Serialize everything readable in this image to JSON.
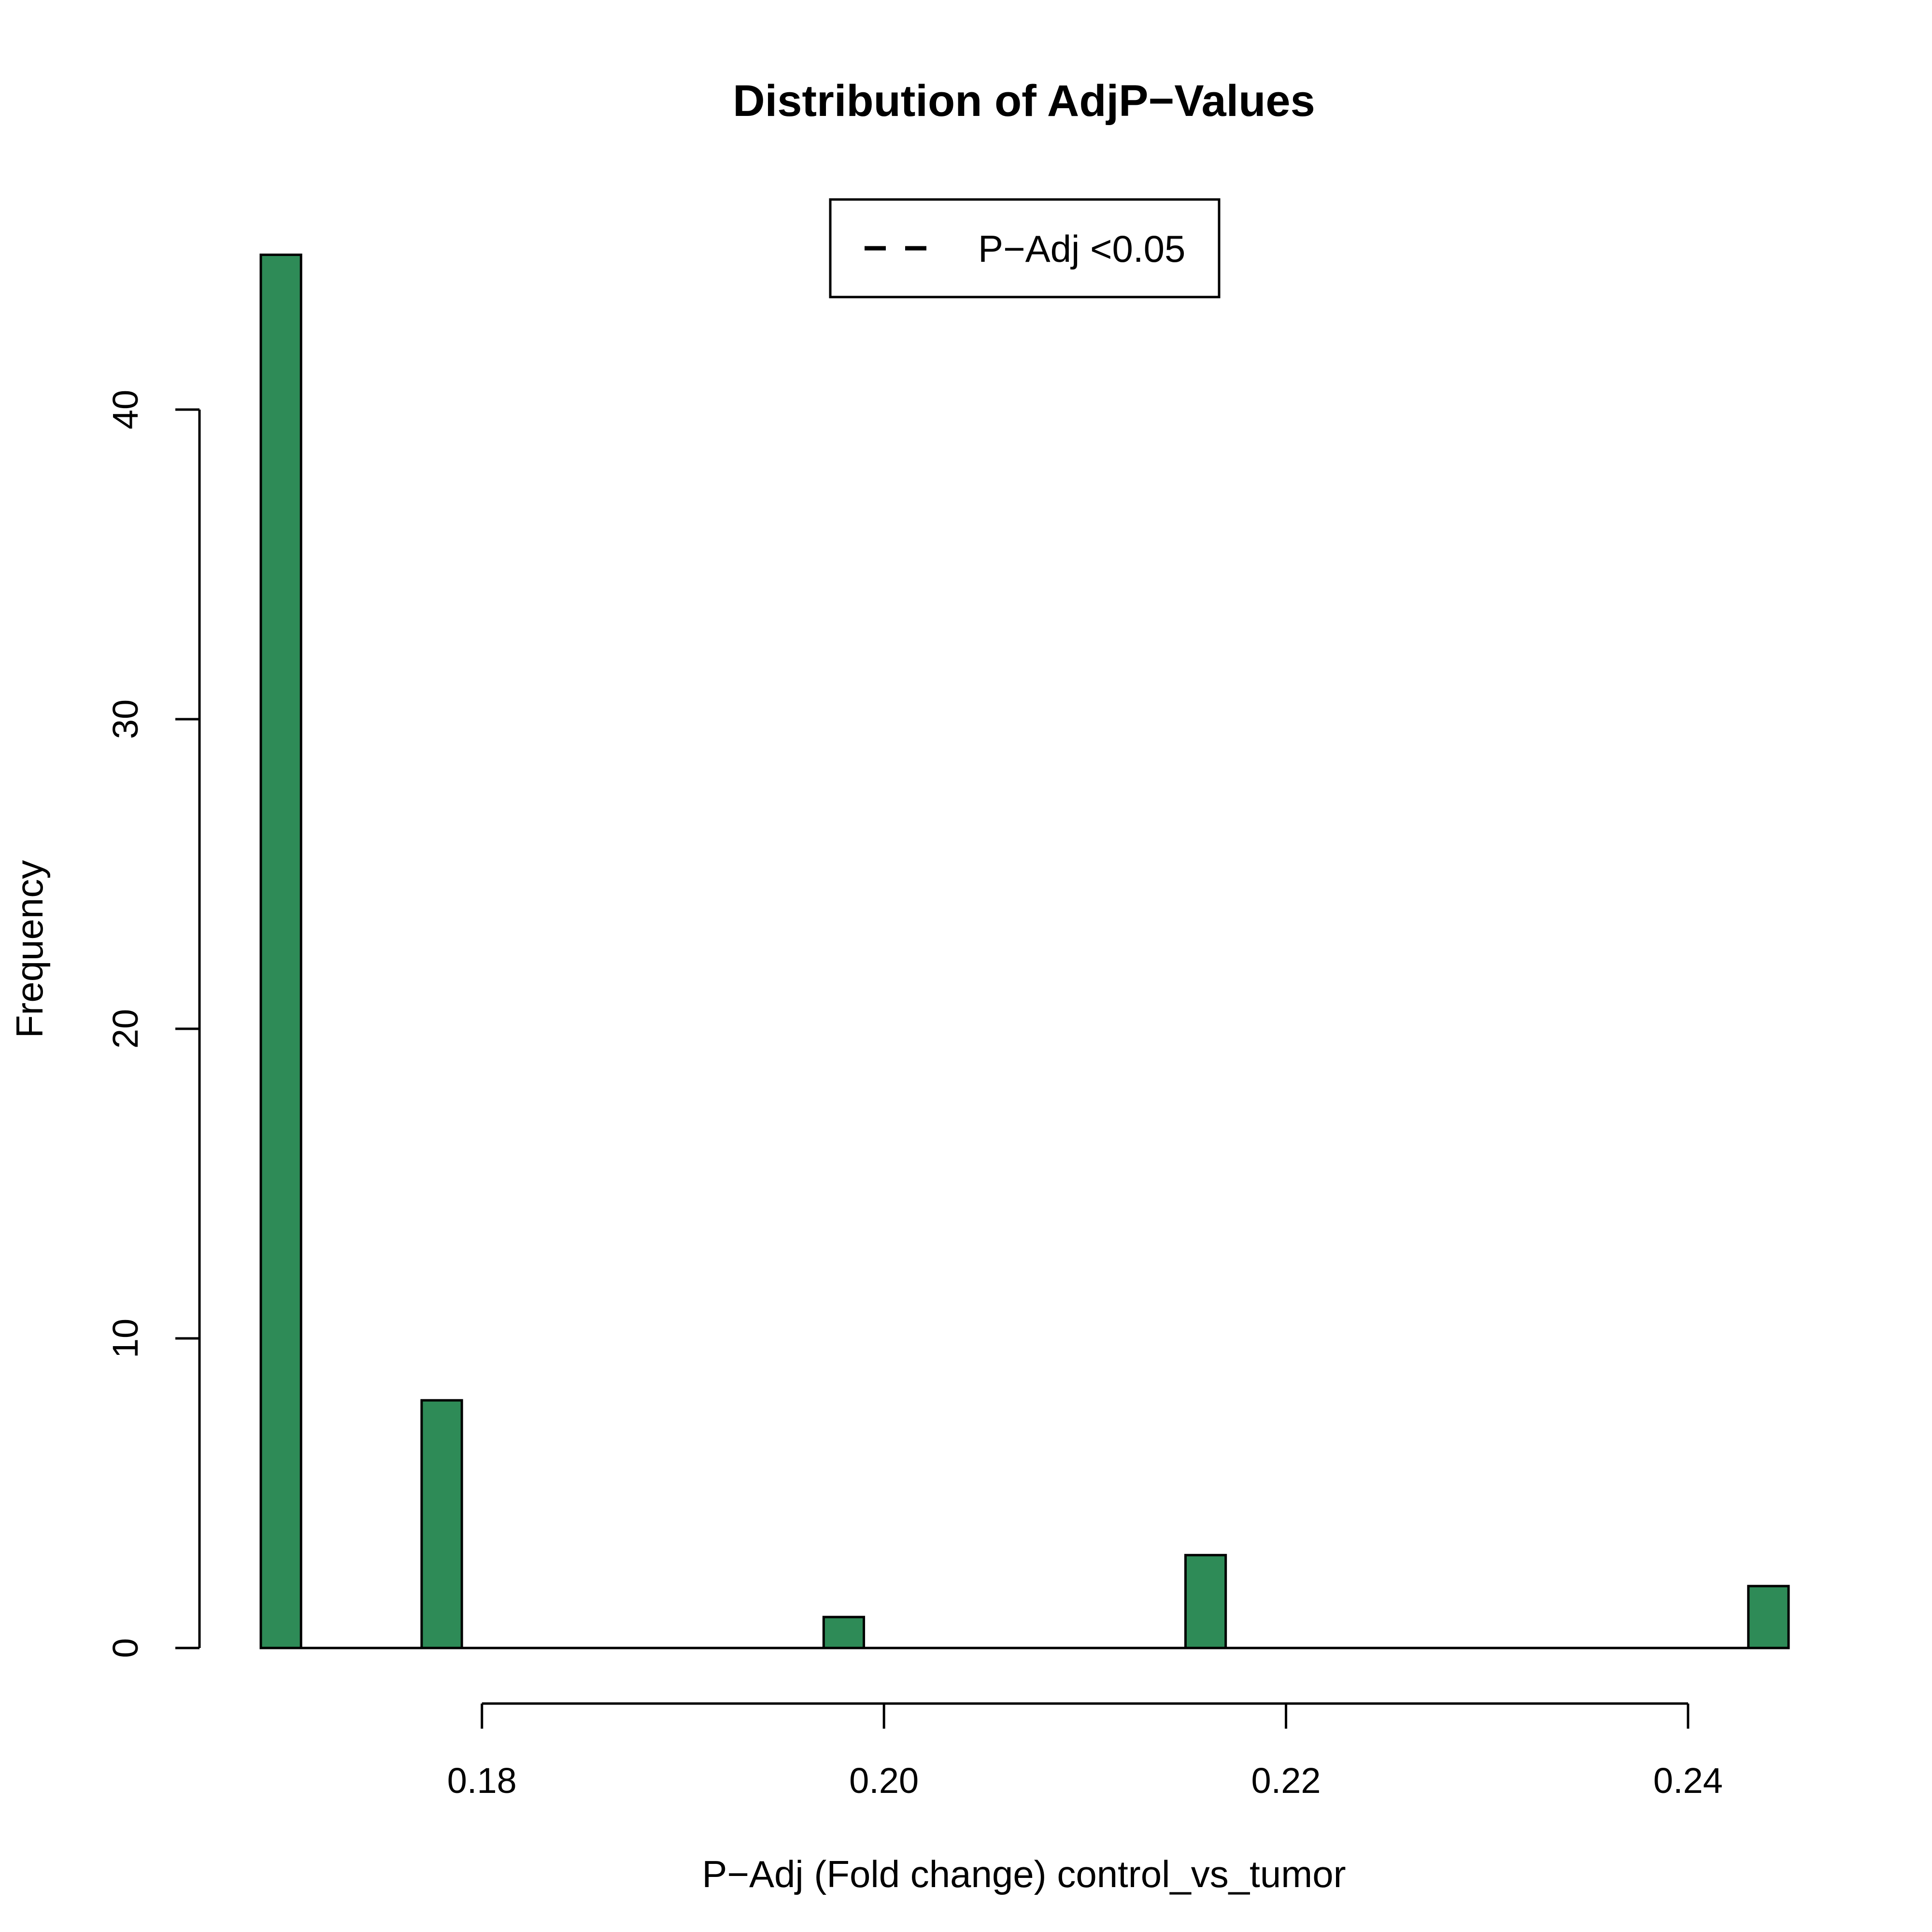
{
  "chart_data": {
    "type": "bar",
    "title": "Distribution of AdjP−Values",
    "xlabel": "P−Adj (Fold change) control_vs_tumor",
    "ylabel": "Frequency",
    "bar_color": "#2E8B57",
    "bin_width": 0.002,
    "bars": [
      {
        "x0": 0.169,
        "x1": 0.171,
        "count": 45
      },
      {
        "x0": 0.177,
        "x1": 0.179,
        "count": 8
      },
      {
        "x0": 0.197,
        "x1": 0.199,
        "count": 1
      },
      {
        "x0": 0.215,
        "x1": 0.217,
        "count": 3
      },
      {
        "x0": 0.243,
        "x1": 0.245,
        "count": 2
      }
    ],
    "xlim": [
      0.169,
      0.245
    ],
    "ylim": [
      0,
      45
    ],
    "x_ticks": [
      0.18,
      0.2,
      0.22,
      0.24
    ],
    "x_tick_labels": [
      "0.18",
      "0.20",
      "0.22",
      "0.24"
    ],
    "y_ticks": [
      0,
      10,
      20,
      30,
      40
    ],
    "y_tick_labels": [
      "0",
      "10",
      "20",
      "30",
      "40"
    ],
    "grid": false,
    "legend": {
      "position": "top-center",
      "entries": [
        {
          "label": "P−Adj <0.05",
          "line_style": "dashed"
        }
      ]
    }
  }
}
